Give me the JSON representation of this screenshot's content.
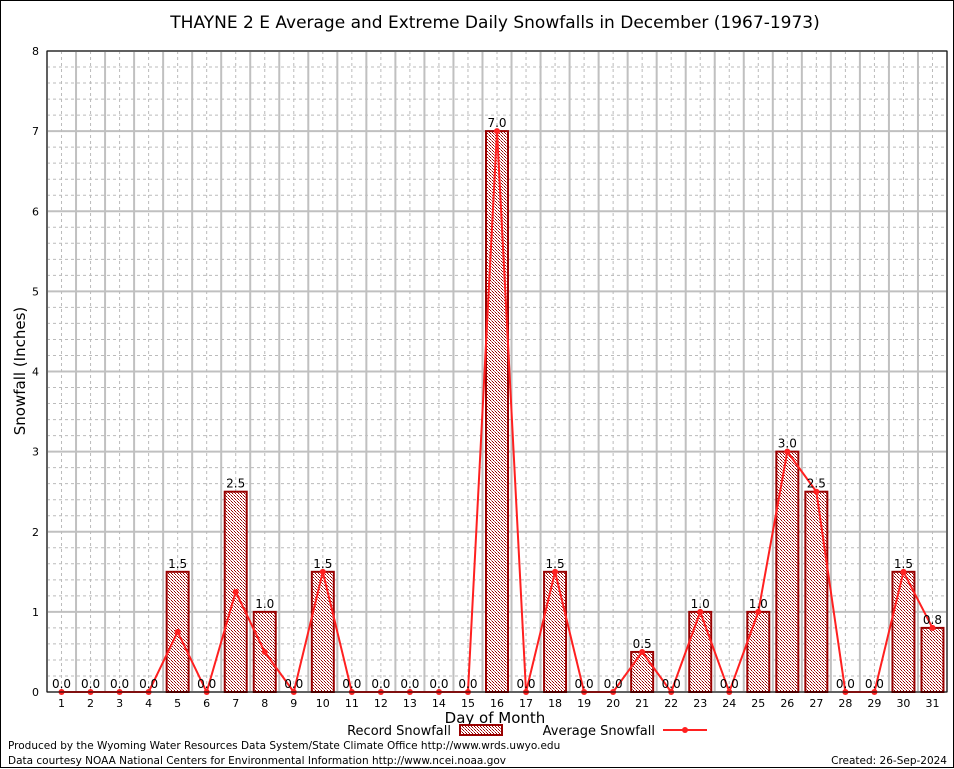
{
  "chart_data": {
    "type": "bar",
    "title": "THAYNE 2 E Average and Extreme Daily Snowfalls in December (1967-1973)",
    "xlabel": "Day of Month",
    "ylabel": "Snowfall (Inches)",
    "ylim": [
      0,
      8
    ],
    "yticks": [
      0,
      1,
      2,
      3,
      4,
      5,
      6,
      7,
      8
    ],
    "grid": true,
    "categories": [
      1,
      2,
      3,
      4,
      5,
      6,
      7,
      8,
      9,
      10,
      11,
      12,
      13,
      14,
      15,
      16,
      17,
      18,
      19,
      20,
      21,
      22,
      23,
      24,
      25,
      26,
      27,
      28,
      29,
      30,
      31
    ],
    "series": [
      {
        "name": "Record Snowfall",
        "type": "bar",
        "color": "#990000",
        "values": [
          0,
          0,
          0,
          0,
          1.5,
          0,
          2.5,
          1.0,
          0,
          1.5,
          0,
          0,
          0,
          0,
          0,
          7.0,
          0,
          1.5,
          0,
          0,
          0.5,
          0,
          1.0,
          0,
          1.0,
          3.0,
          2.5,
          0,
          0,
          1.5,
          0.8
        ]
      },
      {
        "name": "Average Snowfall",
        "type": "line",
        "color": "#ff2020",
        "values": [
          0,
          0,
          0,
          0,
          0.75,
          0,
          1.25,
          0.5,
          0,
          1.5,
          0,
          0,
          0,
          0,
          0,
          7.0,
          0,
          1.5,
          0,
          0,
          0.5,
          0,
          1.0,
          0,
          1.0,
          3.0,
          2.5,
          0,
          0,
          1.5,
          0.8
        ]
      }
    ],
    "legend": "bottom-center"
  },
  "footer": {
    "produced": "Produced by the Wyoming Water Resources Data System/State Climate Office http://www.wrds.uwyo.edu",
    "courtesy": "Data courtesy NOAA National Centers for Environmental Information http://www.ncei.noaa.gov",
    "created": "Created: 26-Sep-2024"
  }
}
